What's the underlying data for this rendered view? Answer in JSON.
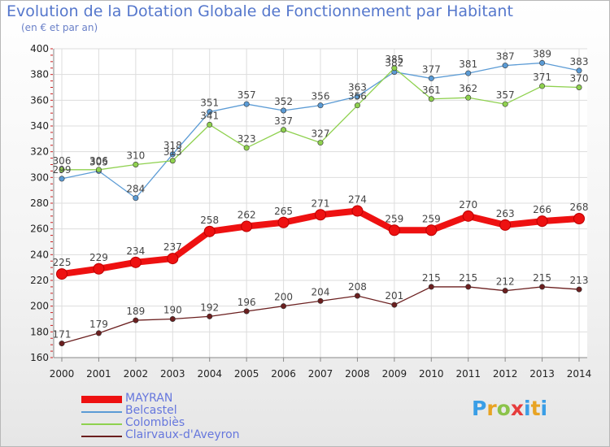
{
  "header": {
    "title": "Evolution de la Dotation Globale de Fonctionnement par Habitant",
    "subtitle": "(en € et par an)"
  },
  "logo": {
    "text": "Proxiti"
  },
  "chart_data": {
    "type": "line",
    "title": "Evolution de la Dotation Globale de Fonctionnement par Habitant",
    "subtitle": "(en € et par an)",
    "x": [
      "2000",
      "2001",
      "2002",
      "2003",
      "2004",
      "2005",
      "2006",
      "2007",
      "2008",
      "2009",
      "2010",
      "2011",
      "2012",
      "2013",
      "2014"
    ],
    "ylim": [
      160,
      400
    ],
    "yticks": [
      160,
      180,
      200,
      220,
      240,
      260,
      280,
      300,
      320,
      340,
      360,
      380,
      400
    ],
    "grid": true,
    "legend_position": "bottom-left",
    "series": [
      {
        "name": "MAYRAN",
        "color": "#ee1111",
        "emphasis": true,
        "values": [
          225,
          229,
          234,
          237,
          258,
          262,
          265,
          271,
          274,
          259,
          259,
          270,
          263,
          266,
          268
        ]
      },
      {
        "name": "Belcastel",
        "color": "#5b9bd5",
        "values": [
          299,
          305,
          284,
          318,
          351,
          357,
          352,
          356,
          363,
          382,
          377,
          381,
          387,
          389,
          383
        ]
      },
      {
        "name": "Colombiès",
        "color": "#8fd14f",
        "values": [
          306,
          306,
          310,
          313,
          341,
          323,
          337,
          327,
          356,
          385,
          361,
          362,
          357,
          371,
          370
        ]
      },
      {
        "name": "Clairvaux-d'Aveyron",
        "color": "#6b1f1f",
        "values": [
          171,
          179,
          189,
          190,
          192,
          196,
          200,
          204,
          208,
          201,
          215,
          215,
          212,
          215,
          213
        ]
      }
    ]
  }
}
